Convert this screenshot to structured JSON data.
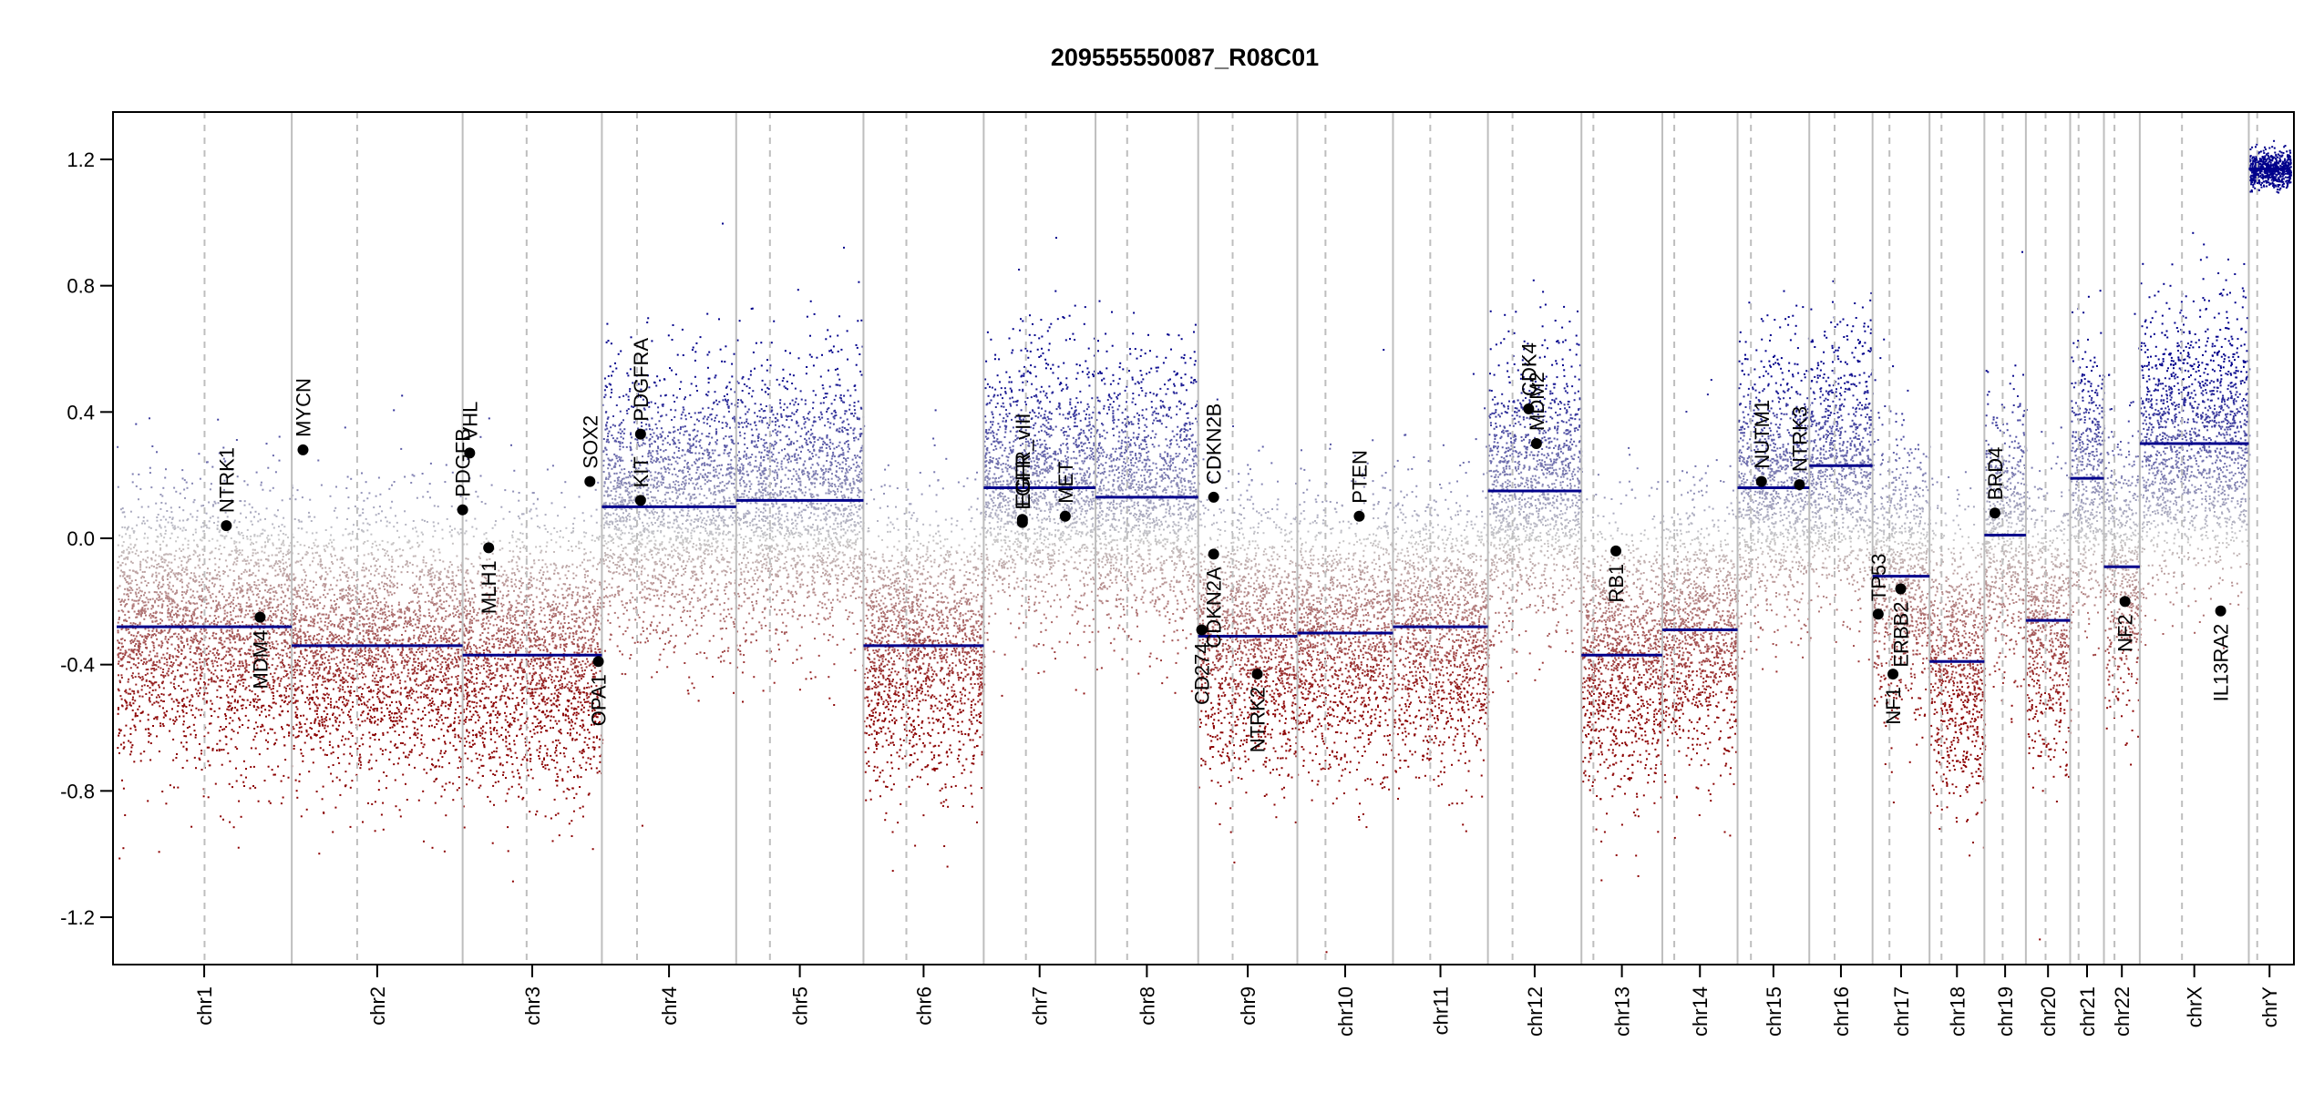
{
  "chart_data": {
    "type": "scatter",
    "title": "209555550087_R08C01",
    "xlabel": "",
    "ylabel": "",
    "ylim": [
      -1.35,
      1.35
    ],
    "yticks": [
      "-1.2",
      "-0.8",
      "-0.4",
      "0.0",
      "0.4",
      "0.8",
      "1.2"
    ],
    "ytick_values": [
      -1.2,
      -0.8,
      -0.4,
      0.0,
      0.4,
      0.8,
      1.2
    ],
    "grid": false,
    "colors": {
      "gain": "#00008b",
      "loss": "#8b0000",
      "neutral": "#c8c8c8",
      "segment": "#00008b",
      "boundary": "#bebebe"
    },
    "chromosomes": [
      {
        "name": "chr1",
        "length": 249,
        "centromere": 125,
        "segment": -0.28,
        "trend": 0
      },
      {
        "name": "chr2",
        "length": 243,
        "centromere": 93,
        "segment": -0.34,
        "trend": 0
      },
      {
        "name": "chr3",
        "length": 198,
        "centromere": 91,
        "segment": -0.37,
        "trend": 0
      },
      {
        "name": "chr4",
        "length": 191,
        "centromere": 50,
        "segment": 0.1,
        "trend": 0
      },
      {
        "name": "chr5",
        "length": 181,
        "centromere": 48,
        "segment": 0.12,
        "trend": 0
      },
      {
        "name": "chr6",
        "length": 171,
        "centromere": 61,
        "segment": -0.34,
        "trend": 0
      },
      {
        "name": "chr7",
        "length": 159,
        "centromere": 60,
        "segment": 0.16,
        "trend": 0
      },
      {
        "name": "chr8",
        "length": 146,
        "centromere": 45,
        "segment": 0.13,
        "trend": 0
      },
      {
        "name": "chr9",
        "length": 141,
        "centromere": 49,
        "segment": -0.31,
        "trend": 0
      },
      {
        "name": "chr10",
        "length": 136,
        "centromere": 40,
        "segment": -0.3,
        "trend": 0
      },
      {
        "name": "chr11",
        "length": 135,
        "centromere": 53,
        "segment": -0.28,
        "trend": 0
      },
      {
        "name": "chr12",
        "length": 133,
        "centromere": 35,
        "segment": 0.15,
        "trend": 0
      },
      {
        "name": "chr13",
        "length": 115,
        "centromere": 17,
        "segment": -0.37,
        "trend": 0
      },
      {
        "name": "chr14",
        "length": 107,
        "centromere": 17,
        "segment": -0.29,
        "trend": 0
      },
      {
        "name": "chr15",
        "length": 102,
        "centromere": 19,
        "segment": 0.16,
        "trend": 0
      },
      {
        "name": "chr16",
        "length": 90,
        "centromere": 36,
        "segment": 0.23,
        "trend": 0
      },
      {
        "name": "chr17",
        "length": 81,
        "centromere": 24,
        "segment": -0.12,
        "trend": 0
      },
      {
        "name": "chr18",
        "length": 78,
        "centromere": 17,
        "segment": -0.39,
        "trend": 0
      },
      {
        "name": "chr19",
        "length": 59,
        "centromere": 26,
        "segment": 0.01,
        "trend": 0
      },
      {
        "name": "chr20",
        "length": 63,
        "centromere": 28,
        "segment": -0.26,
        "trend": 0
      },
      {
        "name": "chr21",
        "length": 48,
        "centromere": 12,
        "segment": 0.19,
        "trend": 0
      },
      {
        "name": "chr22",
        "length": 51,
        "centromere": 15,
        "segment": -0.09,
        "trend": 0
      },
      {
        "name": "chrX",
        "length": 155,
        "centromere": 60,
        "segment": 0.3,
        "trend": 0
      },
      {
        "name": "chrY",
        "length": 59,
        "centromere": 12,
        "segment": 1.17,
        "trend": 0
      }
    ],
    "genes": [
      {
        "name": "NTRK1",
        "chr": "chr1",
        "pos": 156,
        "value": 0.04,
        "side": "above"
      },
      {
        "name": "MDM4",
        "chr": "chr1",
        "pos": 204,
        "value": -0.25,
        "side": "below"
      },
      {
        "name": "MYCN",
        "chr": "chr2",
        "pos": 16,
        "value": 0.28,
        "side": "above"
      },
      {
        "name": "PDGFB",
        "chr": "chr3",
        "pos": 0,
        "value": 0.09,
        "side": "above"
      },
      {
        "name": "VHL",
        "chr": "chr3",
        "pos": 10,
        "value": 0.27,
        "side": "above"
      },
      {
        "name": "MLH1",
        "chr": "chr3",
        "pos": 37,
        "value": -0.03,
        "side": "below"
      },
      {
        "name": "SOX2",
        "chr": "chr3",
        "pos": 181,
        "value": 0.18,
        "side": "above"
      },
      {
        "name": "OPA1",
        "chr": "chr3",
        "pos": 193,
        "value": -0.39,
        "side": "below"
      },
      {
        "name": "KIT",
        "chr": "chr4",
        "pos": 55,
        "value": 0.12,
        "side": "above"
      },
      {
        "name": "PDGFRA",
        "chr": "chr4",
        "pos": 55,
        "value": 0.33,
        "side": "above"
      },
      {
        "name": "EGFR",
        "chr": "chr7",
        "pos": 55,
        "value": 0.05,
        "side": "above"
      },
      {
        "name": "EGFR_vIII",
        "chr": "chr7",
        "pos": 55,
        "value": 0.06,
        "side": "above"
      },
      {
        "name": "MET",
        "chr": "chr7",
        "pos": 116,
        "value": 0.07,
        "side": "above"
      },
      {
        "name": "CDKN2B",
        "chr": "chr9",
        "pos": 22,
        "value": 0.13,
        "side": "above"
      },
      {
        "name": "CDKN2A",
        "chr": "chr9",
        "pos": 22,
        "value": -0.05,
        "side": "below"
      },
      {
        "name": "CD274",
        "chr": "chr9",
        "pos": 5,
        "value": -0.29,
        "side": "below"
      },
      {
        "name": "NTRK2",
        "chr": "chr9",
        "pos": 84,
        "value": -0.43,
        "side": "below"
      },
      {
        "name": "PTEN",
        "chr": "chr10",
        "pos": 88,
        "value": 0.07,
        "side": "above"
      },
      {
        "name": "CDK4",
        "chr": "chr12",
        "pos": 58,
        "value": 0.41,
        "side": "above"
      },
      {
        "name": "MDM2",
        "chr": "chr12",
        "pos": 69,
        "value": 0.3,
        "side": "above"
      },
      {
        "name": "RB1",
        "chr": "chr13",
        "pos": 49,
        "value": -0.04,
        "side": "below"
      },
      {
        "name": "NUTM1",
        "chr": "chr15",
        "pos": 34,
        "value": 0.18,
        "side": "above"
      },
      {
        "name": "NTRK3",
        "chr": "chr15",
        "pos": 88,
        "value": 0.17,
        "side": "above"
      },
      {
        "name": "TP53",
        "chr": "chr17",
        "pos": 8,
        "value": -0.24,
        "side": "above"
      },
      {
        "name": "NF1",
        "chr": "chr17",
        "pos": 29,
        "value": -0.43,
        "side": "below"
      },
      {
        "name": "ERBB2",
        "chr": "chr17",
        "pos": 40,
        "value": -0.16,
        "side": "below"
      },
      {
        "name": "BRD4",
        "chr": "chr19",
        "pos": 15,
        "value": 0.08,
        "side": "above"
      },
      {
        "name": "NF2",
        "chr": "chr22",
        "pos": 30,
        "value": -0.2,
        "side": "below"
      },
      {
        "name": "IL13RA2",
        "chr": "chrX",
        "pos": 115,
        "value": -0.23,
        "side": "below"
      }
    ]
  }
}
